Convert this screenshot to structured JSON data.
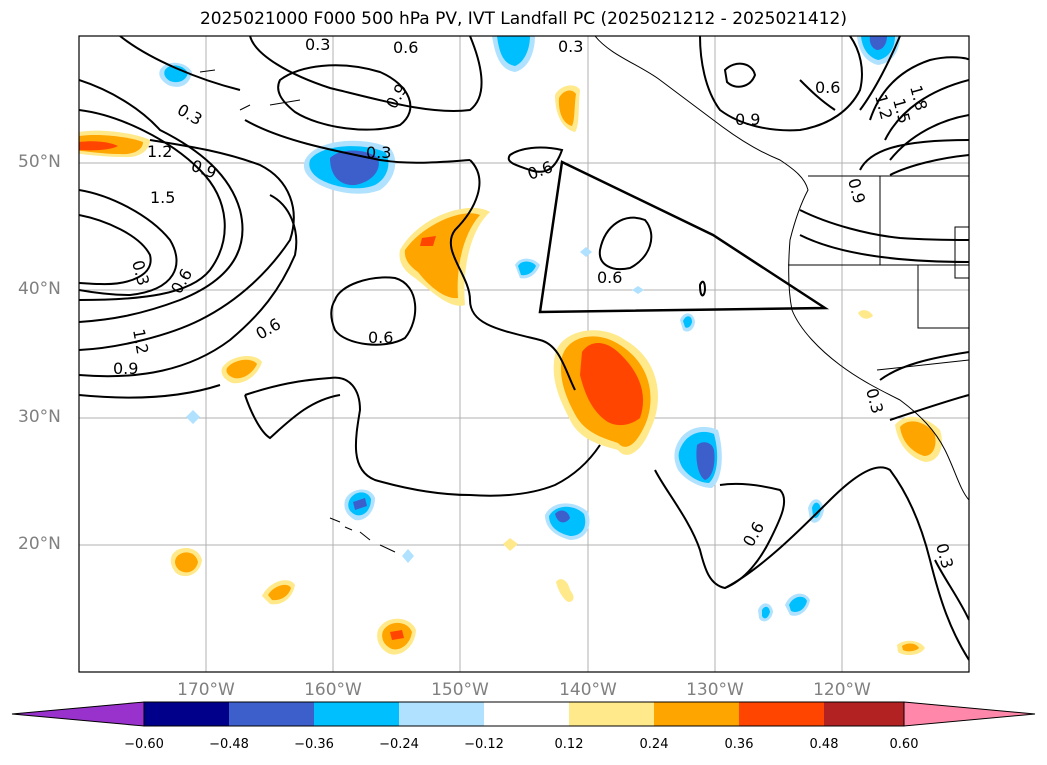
{
  "title": "2025021000 F000 500 hPa PV, IVT Landfall PC (2025021212 - 2025021412)",
  "lat_labels": [
    "50°N",
    "40°N",
    "30°N",
    "20°N"
  ],
  "lon_labels": [
    "170°W",
    "160°W",
    "150°W",
    "140°W",
    "130°W",
    "120°W"
  ],
  "contour_labels": [
    "0.3",
    "0.6",
    "0.9",
    "1.2",
    "1.5",
    "1.8"
  ],
  "colorbar": {
    "tick_labels": [
      "−0.60",
      "−0.48",
      "−0.36",
      "−0.24",
      "−0.12",
      "0.12",
      "0.24",
      "0.36",
      "0.48",
      "0.60"
    ],
    "colors": [
      "#9932cc",
      "#00008b",
      "#3d5fcc",
      "#00bfff",
      "#b0e2ff",
      "#ffffff",
      "#ffe98a",
      "#ffa500",
      "#ff4500",
      "#b22222",
      "#ff88aa"
    ]
  },
  "map": {
    "projection": "PlateCarree",
    "lon_range": [
      -180,
      -110
    ],
    "lat_range": [
      10,
      60
    ],
    "gridlines": true
  }
}
